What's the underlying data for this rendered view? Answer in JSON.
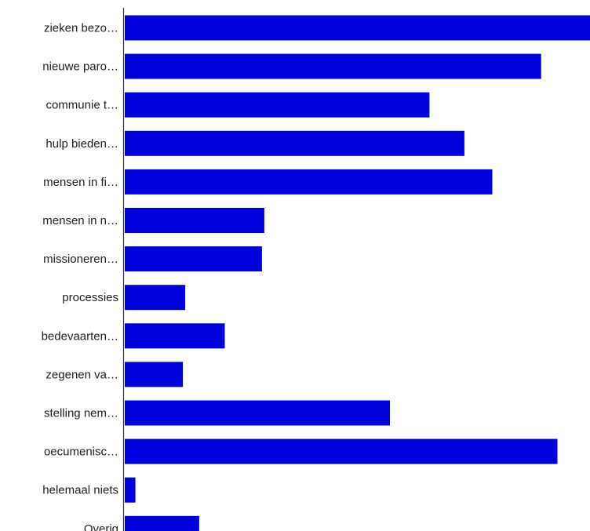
{
  "chart_data": {
    "type": "bar",
    "orientation": "horizontal",
    "categories": [
      "zieken bezo…",
      "nieuwe paro…",
      "communie t…",
      "hulp bieden…",
      "mensen in fi…",
      "mensen in n…",
      "missioneren…",
      "processies",
      "bedevaarten…",
      "zegenen va…",
      "stelling nem…",
      "oecumenisc…",
      "helemaal niets",
      "Overig"
    ],
    "values": [
      100,
      89.5,
      65.5,
      73,
      79,
      30,
      29.5,
      13,
      21.5,
      12.5,
      57,
      93,
      2.3,
      16
    ],
    "xlim": [
      0,
      100
    ],
    "grid": false,
    "bar_color": "#0000dd",
    "axis_color": "#333333",
    "label_color": "#222222"
  }
}
